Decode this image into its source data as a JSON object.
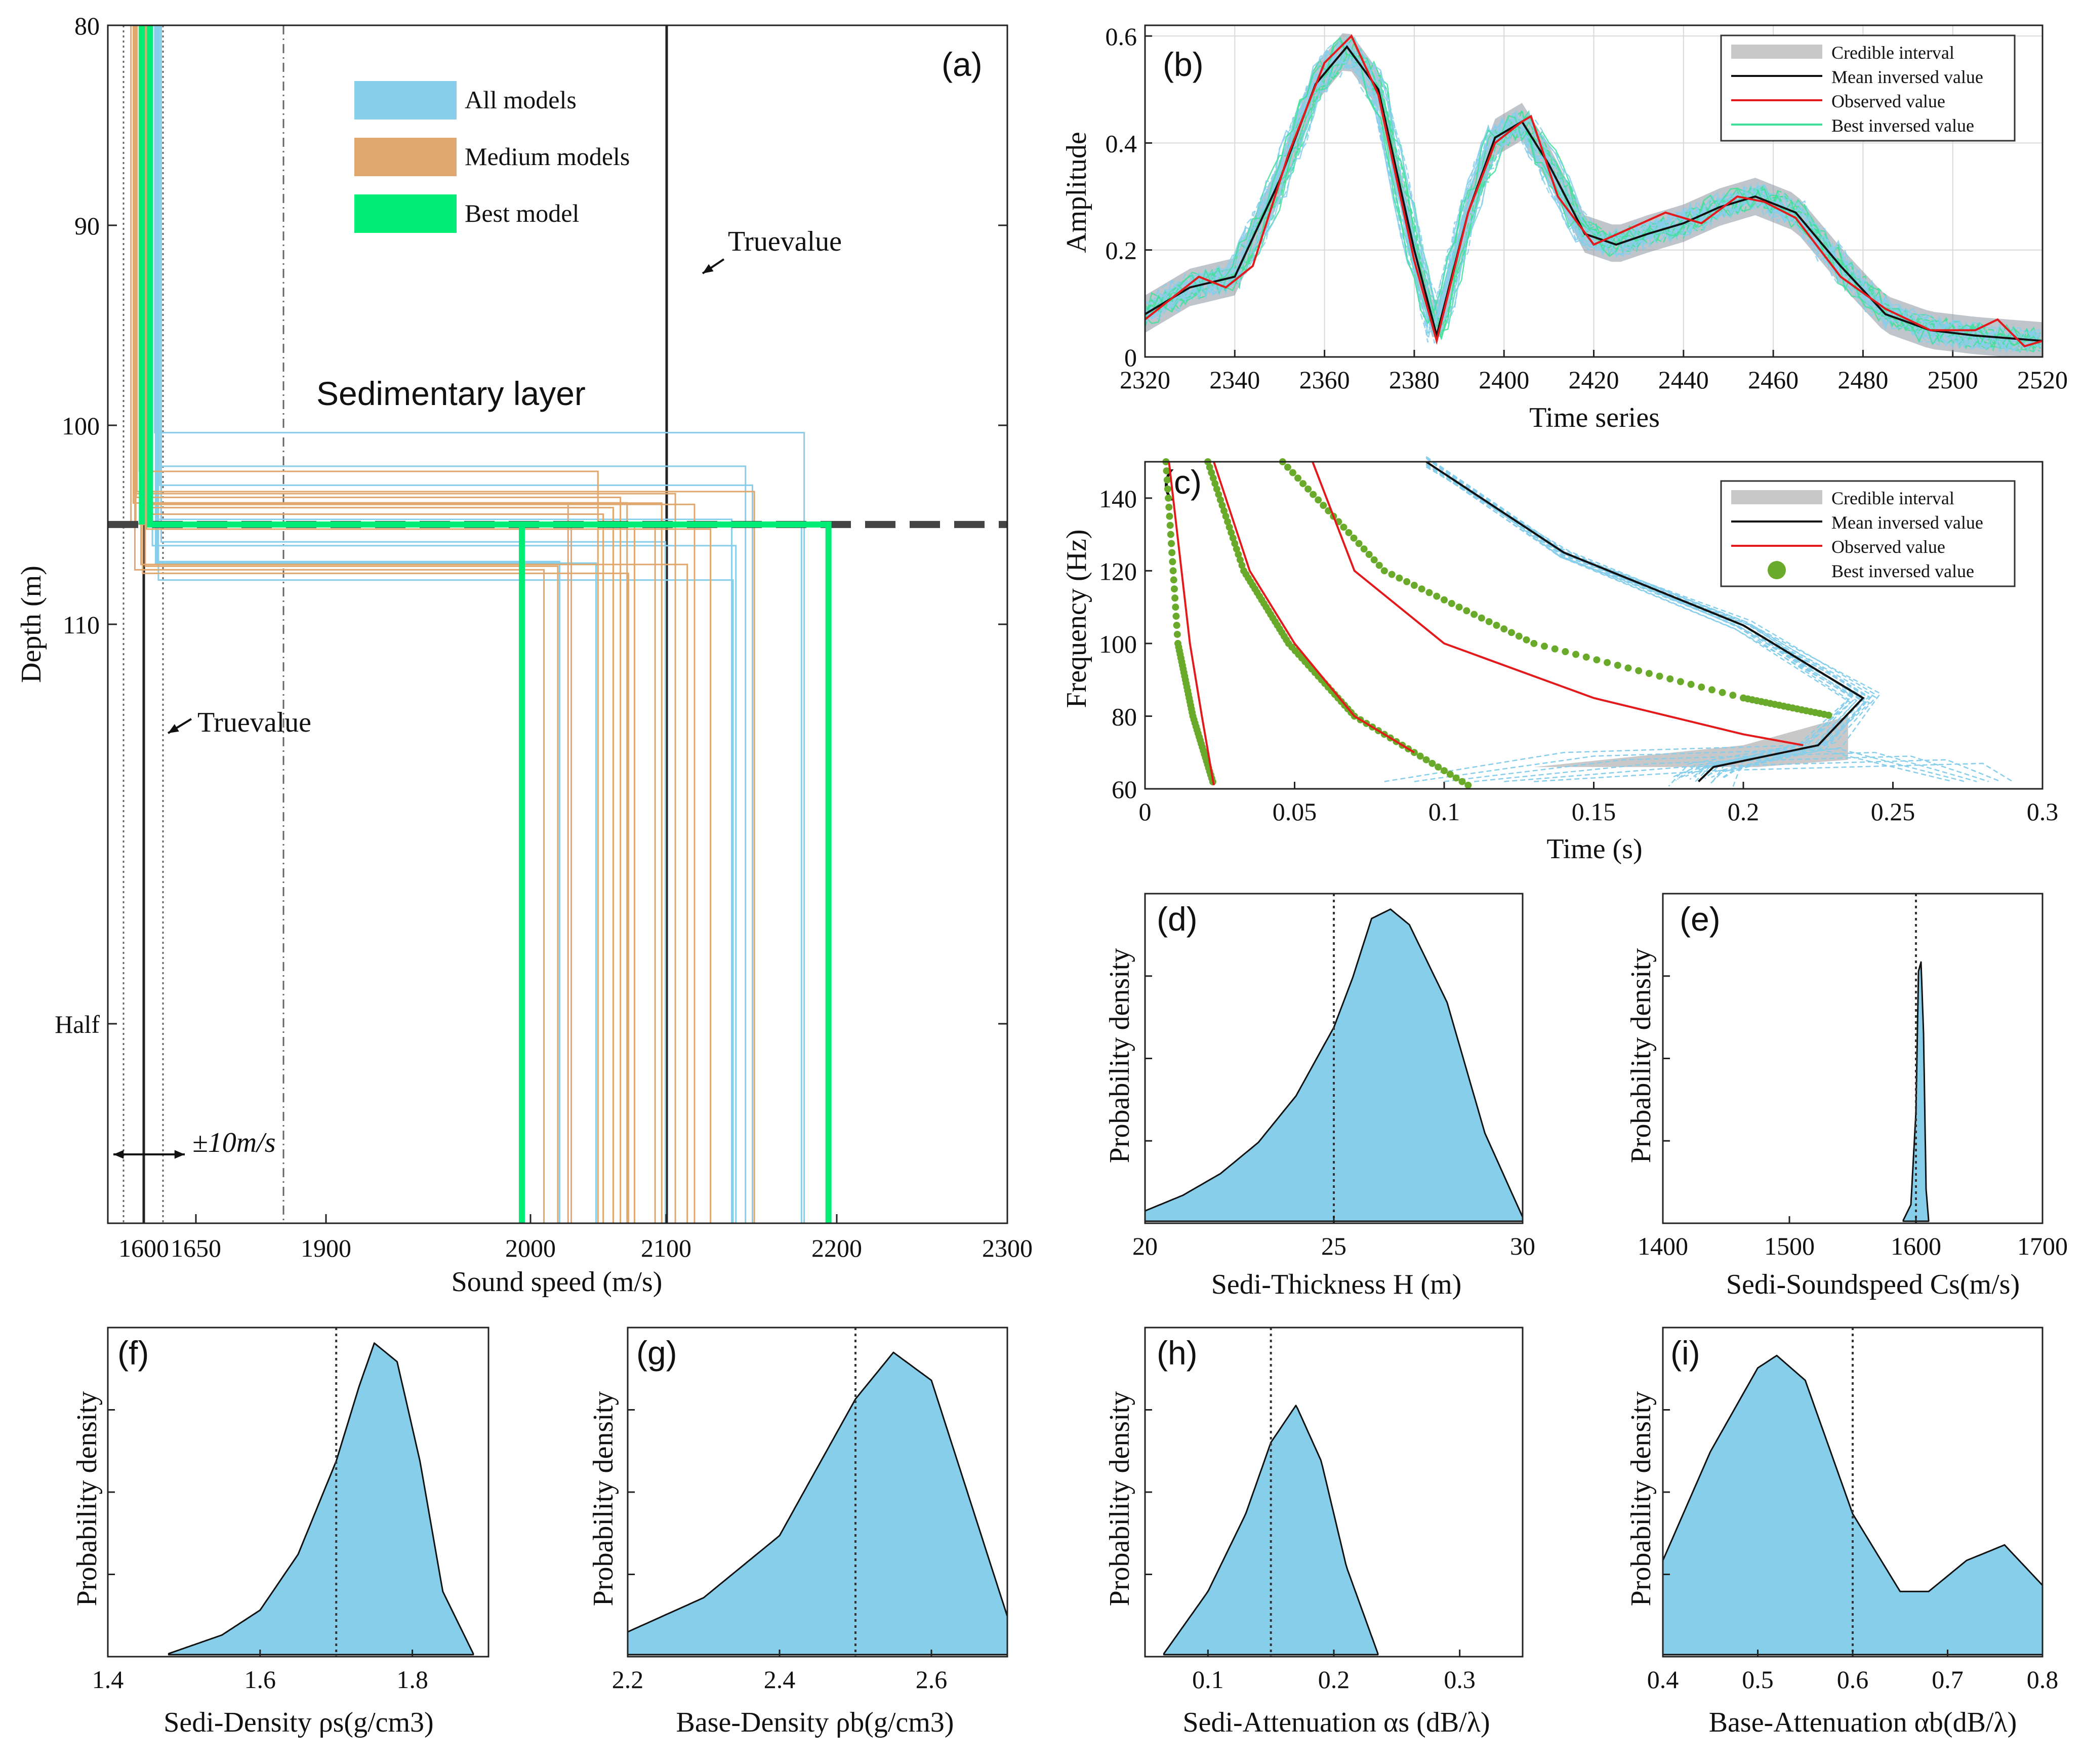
{
  "colors": {
    "all_models": "#87ceeb",
    "medium_models": "#e0a86e",
    "best_model": "#00ee76",
    "observed": "#e31a1c",
    "mean": "#111111",
    "credible": "#c8c8c8",
    "best_dots": "#6aaa2a",
    "fill": "#87ceeb",
    "grid": "#d9d9d9"
  },
  "chart_data": [
    {
      "panel": "a",
      "type": "line",
      "label": "(a)",
      "xlabel": "Sound speed (m/s)",
      "ylabel": "Depth (m)",
      "x_ticks": [
        "1600",
        "1650",
        "1900",
        "2000",
        "2100",
        "2200",
        "2300"
      ],
      "y_ticks": [
        "80",
        "90",
        "100",
        "110",
        "Half"
      ],
      "legend": [
        "All models",
        "Medium models",
        "Best model"
      ],
      "annotations": {
        "layer": "Sedimentary layer",
        "truevalue": "Truevalue",
        "error_band": "±10m/s"
      },
      "true_sed_speed": 1600,
      "true_base_speed": 2100,
      "true_interface_depth": 105,
      "best_model": {
        "sed_speed": 1606,
        "interface_depth": 105,
        "base_speed": 2195
      },
      "model_interface_depth_range": [
        100.4,
        108.4
      ],
      "model_base_speed_range": [
        2015,
        2195
      ]
    },
    {
      "panel": "b",
      "type": "line",
      "label": "(b)",
      "xlabel": "Time series",
      "ylabel": "Amplitude",
      "xlim": [
        2320,
        2520
      ],
      "ylim": [
        0,
        0.62
      ],
      "x_ticks": [
        2320,
        2340,
        2360,
        2380,
        2400,
        2420,
        2440,
        2460,
        2480,
        2500,
        2520
      ],
      "y_ticks": [
        0,
        0.2,
        0.4,
        0.6
      ],
      "legend": [
        "Credible interval",
        "Mean inversed value",
        "Observed value",
        "Best inversed value"
      ],
      "series": [
        {
          "name": "Mean inversed value",
          "x": [
            2320,
            2330,
            2340,
            2350,
            2358,
            2365,
            2372,
            2380,
            2385,
            2392,
            2398,
            2404,
            2410,
            2418,
            2425,
            2432,
            2440,
            2448,
            2456,
            2465,
            2475,
            2485,
            2495,
            2505,
            2520
          ],
          "y": [
            0.08,
            0.13,
            0.15,
            0.33,
            0.51,
            0.58,
            0.5,
            0.2,
            0.04,
            0.27,
            0.41,
            0.44,
            0.36,
            0.23,
            0.21,
            0.23,
            0.25,
            0.28,
            0.3,
            0.27,
            0.17,
            0.08,
            0.05,
            0.04,
            0.03
          ]
        },
        {
          "name": "Observed value",
          "x": [
            2320,
            2326,
            2332,
            2338,
            2344,
            2352,
            2360,
            2366,
            2372,
            2380,
            2385,
            2392,
            2398,
            2404,
            2406,
            2412,
            2420,
            2428,
            2436,
            2444,
            2452,
            2458,
            2465,
            2475,
            2485,
            2495,
            2505,
            2510,
            2516,
            2520
          ],
          "y": [
            0.07,
            0.11,
            0.15,
            0.13,
            0.17,
            0.38,
            0.55,
            0.6,
            0.49,
            0.18,
            0.03,
            0.27,
            0.4,
            0.44,
            0.45,
            0.3,
            0.21,
            0.24,
            0.27,
            0.25,
            0.3,
            0.29,
            0.26,
            0.15,
            0.09,
            0.05,
            0.05,
            0.07,
            0.02,
            0.03
          ]
        }
      ]
    },
    {
      "panel": "c",
      "type": "line",
      "label": "(c)",
      "xlabel": "Time (s)",
      "ylabel": "Frequency (Hz)",
      "xlim": [
        0,
        0.3
      ],
      "ylim": [
        60,
        150
      ],
      "x_ticks": [
        0,
        0.05,
        0.1,
        0.15,
        0.2,
        0.25,
        0.3
      ],
      "y_ticks": [
        60,
        80,
        100,
        120,
        140
      ],
      "legend": [
        "Credible interval",
        "Mean inversed value",
        "Observed value",
        "Best inversed value"
      ],
      "series": [
        {
          "name": "Mode 1 observed",
          "t": [
            0.008,
            0.015,
            0.019,
            0.023
          ],
          "f": [
            150,
            100,
            80,
            61
          ]
        },
        {
          "name": "Mode 1 best",
          "t": [
            0.007,
            0.011,
            0.016,
            0.023
          ],
          "f": [
            150,
            100,
            80,
            61
          ]
        },
        {
          "name": "Mode 2 observed",
          "t": [
            0.023,
            0.035,
            0.05,
            0.07,
            0.09
          ],
          "f": [
            150,
            120,
            100,
            80,
            70
          ]
        },
        {
          "name": "Mode 2 best",
          "t": [
            0.021,
            0.033,
            0.048,
            0.07,
            0.11
          ],
          "f": [
            150,
            120,
            100,
            80,
            60
          ]
        },
        {
          "name": "Mode 3 observed",
          "t": [
            0.056,
            0.07,
            0.1,
            0.15,
            0.2,
            0.22
          ],
          "f": [
            150,
            120,
            100,
            85,
            75,
            72
          ]
        },
        {
          "name": "Mode 3 best",
          "t": [
            0.046,
            0.08,
            0.13,
            0.2,
            0.23
          ],
          "f": [
            150,
            120,
            100,
            85,
            80
          ]
        },
        {
          "name": "Mode 4 mean",
          "t": [
            0.094,
            0.14,
            0.2,
            0.24,
            0.225,
            0.19,
            0.185
          ],
          "f": [
            150,
            125,
            105,
            85,
            72,
            66,
            62
          ]
        }
      ]
    },
    {
      "panel": "d",
      "type": "area",
      "label": "(d)",
      "xlabel": "Sedi-Thickness H (m)",
      "ylabel": "Probability density",
      "xlim": [
        20,
        30
      ],
      "x_ticks": [
        20,
        25,
        30
      ],
      "true_value": 25,
      "x": [
        20,
        21,
        22,
        23,
        24,
        25,
        25.5,
        26,
        26.5,
        27,
        28,
        29,
        30
      ],
      "y": [
        0.03,
        0.08,
        0.15,
        0.25,
        0.4,
        0.62,
        0.78,
        0.97,
        1.0,
        0.95,
        0.7,
        0.28,
        0.01
      ]
    },
    {
      "panel": "e",
      "type": "area",
      "label": "(e)",
      "xlabel": "Sedi-Soundspeed Cs(m/s)",
      "ylabel": "Probability density",
      "xlim": [
        1400,
        1700
      ],
      "x_ticks": [
        1400,
        1500,
        1600,
        1700
      ],
      "true_value": 1600,
      "x": [
        1590,
        1596,
        1600,
        1602,
        1604,
        1606,
        1608,
        1610
      ],
      "y": [
        0.0,
        0.05,
        0.35,
        0.8,
        0.83,
        0.6,
        0.1,
        0.0
      ]
    },
    {
      "panel": "f",
      "type": "area",
      "label": "(f)",
      "xlabel": "Sedi-Density ρs(g/cm3)",
      "ylabel": "Probability density",
      "xlim": [
        1.4,
        1.9
      ],
      "x_ticks": [
        1.4,
        1.6,
        1.8
      ],
      "true_value": 1.7,
      "x": [
        1.48,
        1.55,
        1.6,
        1.65,
        1.7,
        1.73,
        1.75,
        1.78,
        1.81,
        1.84,
        1.88
      ],
      "y": [
        0.0,
        0.06,
        0.14,
        0.32,
        0.62,
        0.86,
        1.0,
        0.94,
        0.62,
        0.2,
        0.0
      ]
    },
    {
      "panel": "g",
      "type": "area",
      "label": "(g)",
      "xlabel": "Base-Density ρb(g/cm3)",
      "ylabel": "Probability density",
      "xlim": [
        2.2,
        2.7
      ],
      "x_ticks": [
        2.2,
        2.4,
        2.6
      ],
      "true_value": 2.5,
      "x": [
        2.2,
        2.3,
        2.4,
        2.45,
        2.5,
        2.55,
        2.6,
        2.65,
        2.7
      ],
      "y": [
        0.07,
        0.18,
        0.38,
        0.6,
        0.82,
        0.97,
        0.88,
        0.5,
        0.12
      ]
    },
    {
      "panel": "h",
      "type": "area",
      "label": "(h)",
      "xlabel": "Sedi-Attenuation αs (dB/λ)",
      "ylabel": "Probability density",
      "xlim": [
        0.05,
        0.35
      ],
      "x_ticks": [
        0.1,
        0.2,
        0.3
      ],
      "true_value": 0.15,
      "x": [
        0.065,
        0.1,
        0.13,
        0.15,
        0.17,
        0.19,
        0.21,
        0.235
      ],
      "y": [
        0.0,
        0.2,
        0.45,
        0.68,
        0.8,
        0.62,
        0.28,
        0.0
      ]
    },
    {
      "panel": "i",
      "type": "area",
      "label": "(i)",
      "xlabel": "Base-Attenuation αb(dB/λ)",
      "ylabel": "Probability density",
      "xlim": [
        0.4,
        0.8
      ],
      "x_ticks": [
        0.4,
        0.5,
        0.6,
        0.7,
        0.8
      ],
      "true_value": 0.6,
      "x": [
        0.4,
        0.45,
        0.5,
        0.52,
        0.55,
        0.6,
        0.65,
        0.68,
        0.72,
        0.76,
        0.8
      ],
      "y": [
        0.3,
        0.65,
        0.92,
        0.96,
        0.88,
        0.45,
        0.2,
        0.2,
        0.3,
        0.35,
        0.22
      ]
    }
  ]
}
